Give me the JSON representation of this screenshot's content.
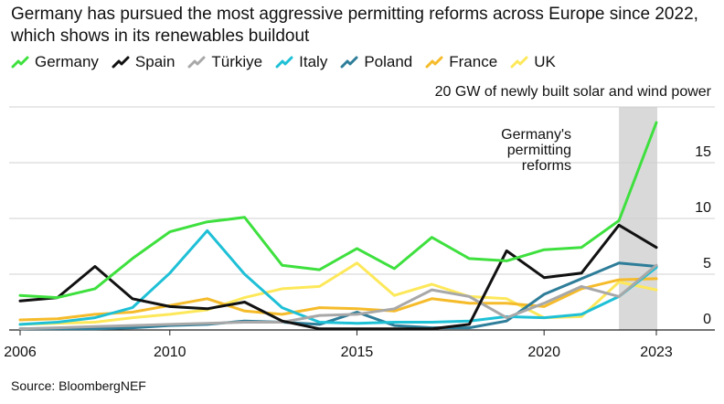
{
  "title": "Germany has pursued the most aggressive permitting reforms across Europe since 2022, which shows in its renewables buildout",
  "source": "Source: BloombergNEF",
  "chart_data": {
    "type": "line",
    "title": "Germany has pursued the most aggressive permitting reforms across Europe since 2022, which shows in its renewables buildout",
    "ylabel": "GW of newly built solar and wind power",
    "ylabel_full": "20 GW of newly built solar and wind power",
    "xlabel": "",
    "x": [
      2006,
      2007,
      2008,
      2009,
      2010,
      2011,
      2012,
      2013,
      2014,
      2015,
      2016,
      2017,
      2018,
      2019,
      2020,
      2021,
      2022,
      2023
    ],
    "xticks": [
      "2006",
      "2010",
      "2015",
      "2020",
      "2023"
    ],
    "xlim": [
      2006,
      2023
    ],
    "yticks": [
      "0",
      "5",
      "10",
      "15"
    ],
    "ylim": [
      0,
      20
    ],
    "grid": true,
    "legend_placement": "top-left",
    "annotation": {
      "text": [
        "Germany's",
        "permitting",
        "reforms"
      ],
      "x_start": 2022,
      "x_end": 2023
    },
    "series": [
      {
        "name": "Germany",
        "color": "#3ee03e",
        "values": [
          3.1,
          2.9,
          3.7,
          6.4,
          8.8,
          9.7,
          10.1,
          5.8,
          5.4,
          7.3,
          5.5,
          8.3,
          6.4,
          6.2,
          7.2,
          7.4,
          9.8,
          18.6
        ]
      },
      {
        "name": "Spain",
        "color": "#111111",
        "values": [
          2.6,
          2.9,
          5.7,
          2.8,
          2.1,
          1.9,
          2.5,
          0.8,
          0.1,
          0.1,
          0.1,
          0.1,
          0.5,
          7.1,
          4.7,
          5.1,
          9.4,
          7.4
        ]
      },
      {
        "name": "Türkiye",
        "color": "#a8a8a8",
        "values": [
          0.1,
          0.2,
          0.3,
          0.4,
          0.5,
          0.6,
          0.7,
          0.7,
          1.3,
          1.4,
          1.9,
          3.6,
          3.0,
          1.1,
          2.4,
          3.9,
          3.0,
          5.8
        ]
      },
      {
        "name": "Italy",
        "color": "#1ec0d6",
        "values": [
          0.5,
          0.7,
          1.1,
          2.0,
          5.1,
          8.9,
          5.0,
          2.0,
          0.7,
          0.6,
          0.7,
          0.7,
          0.8,
          1.2,
          1.1,
          1.4,
          3.0,
          5.6
        ]
      },
      {
        "name": "Poland",
        "color": "#2e7d99",
        "values": [
          0.1,
          0.1,
          0.1,
          0.2,
          0.4,
          0.5,
          0.8,
          0.7,
          0.5,
          1.6,
          0.4,
          0.2,
          0.2,
          0.8,
          3.2,
          4.6,
          6.0,
          5.7
        ]
      },
      {
        "name": "France",
        "color": "#f5bb2a",
        "values": [
          0.9,
          1.0,
          1.4,
          1.6,
          2.2,
          2.8,
          1.7,
          1.4,
          2.0,
          1.9,
          1.7,
          2.8,
          2.4,
          2.4,
          2.1,
          3.7,
          4.5,
          4.6
        ]
      },
      {
        "name": "UK",
        "color": "#fde85a",
        "values": [
          0.5,
          0.6,
          0.7,
          1.1,
          1.4,
          1.8,
          2.9,
          3.7,
          3.9,
          6.0,
          3.1,
          4.1,
          3.0,
          2.8,
          1.1,
          1.2,
          4.3,
          3.6
        ]
      }
    ]
  }
}
